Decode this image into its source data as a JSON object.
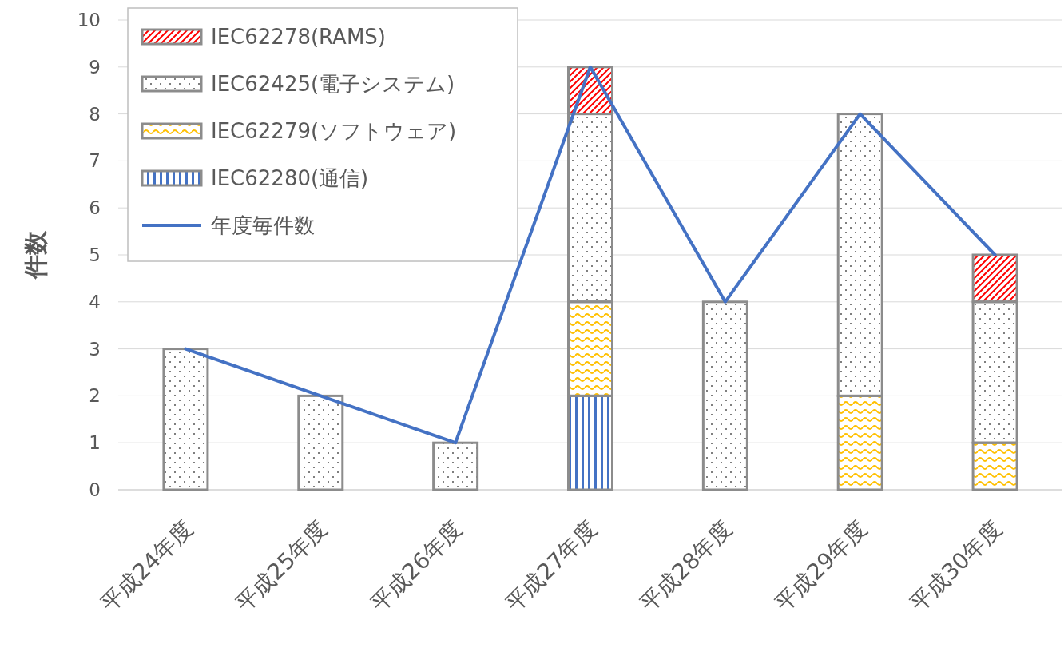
{
  "chart_data": {
    "type": "bar",
    "stacked": true,
    "ylabel": "件数",
    "categories": [
      "平成24年度",
      "平成25年度",
      "平成26年度",
      "平成27年度",
      "平成28年度",
      "平成29年度",
      "平成30年度"
    ],
    "series": [
      {
        "name": "IEC62280(通信)",
        "color": "#4472c4",
        "values": [
          0,
          0,
          0,
          2,
          0,
          0,
          0
        ]
      },
      {
        "name": "IEC62279(ソフトウェア)",
        "color": "#ffc000",
        "values": [
          0,
          0,
          0,
          2,
          0,
          2,
          1
        ]
      },
      {
        "name": "IEC62425(電子システム)",
        "color": "#7f7f7f",
        "values": [
          3,
          2,
          1,
          4,
          4,
          6,
          3
        ]
      },
      {
        "name": "IEC62278(RAMS)",
        "color": "#ff0000",
        "values": [
          0,
          0,
          0,
          1,
          0,
          0,
          1
        ]
      },
      {
        "name": "年度毎件数",
        "type": "line",
        "color": "#4472c4",
        "values": [
          3,
          2,
          1,
          9,
          4,
          8,
          5
        ]
      }
    ],
    "ylim": [
      0,
      10
    ],
    "yticks": [
      0,
      1,
      2,
      3,
      4,
      5,
      6,
      7,
      8,
      9,
      10
    ],
    "grid": "y",
    "legend": "top left"
  }
}
